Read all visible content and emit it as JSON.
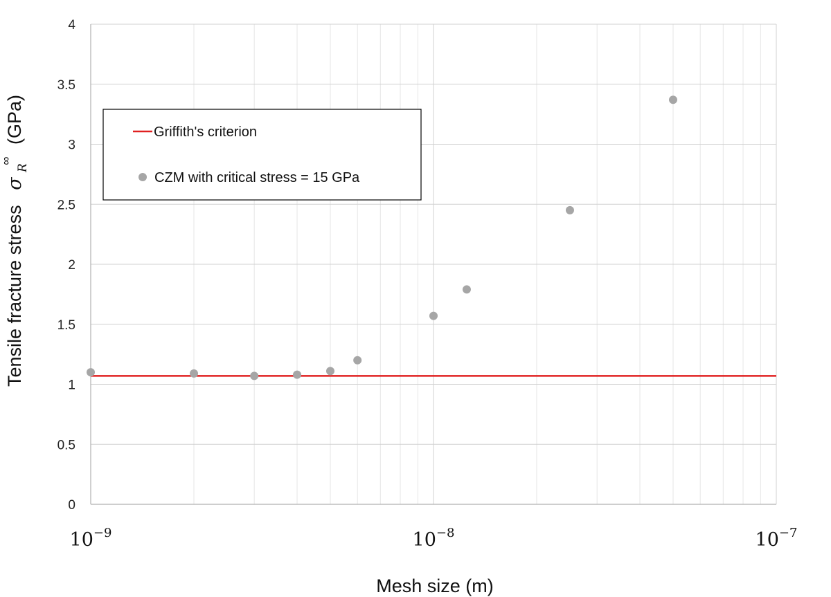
{
  "chart_data": {
    "type": "scatter",
    "x_scale": "log",
    "xlim": [
      1e-09,
      1e-07
    ],
    "ylim": [
      0,
      4
    ],
    "grid": true,
    "xlabel": "Mesh size (m)",
    "ylabel": {
      "prefix": "Tensile fracture stress",
      "symbol": "σ",
      "subscript": "R",
      "superscript": "∞",
      "unit": "(GPa)"
    },
    "x_ticks": [
      {
        "value": 1e-09,
        "base": "10",
        "exponent": "−9"
      },
      {
        "value": 1e-08,
        "base": "10",
        "exponent": "−8"
      },
      {
        "value": 1e-07,
        "base": "10",
        "exponent": "−7"
      }
    ],
    "y_ticks": [
      {
        "value": 0,
        "label": "0"
      },
      {
        "value": 0.5,
        "label": "0.5"
      },
      {
        "value": 1,
        "label": "1"
      },
      {
        "value": 1.5,
        "label": "1.5"
      },
      {
        "value": 2,
        "label": "2"
      },
      {
        "value": 2.5,
        "label": "2.5"
      },
      {
        "value": 3,
        "label": "3"
      },
      {
        "value": 3.5,
        "label": "3.5"
      },
      {
        "value": 4,
        "label": "4"
      }
    ],
    "legend": {
      "position": "upper-left",
      "entries": [
        {
          "label": "Griffith's criterion",
          "marker": "line",
          "color": "#e02020"
        },
        {
          "label": "CZM with critical stress = 15 GPa",
          "marker": "circle",
          "color": "#a6a6a6"
        }
      ]
    },
    "series": [
      {
        "name": "Griffith's criterion",
        "kind": "line",
        "color": "#e02020",
        "x": [
          1e-09,
          1e-07
        ],
        "y": [
          1.07,
          1.07
        ]
      },
      {
        "name": "CZM with critical stress = 15 GPa",
        "kind": "scatter",
        "color": "#a6a6a6",
        "x": [
          1e-09,
          2e-09,
          3e-09,
          4e-09,
          5e-09,
          6e-09,
          1e-08,
          1.25e-08,
          2.5e-08,
          5e-08
        ],
        "y": [
          1.1,
          1.09,
          1.07,
          1.08,
          1.11,
          1.2,
          1.57,
          1.79,
          2.45,
          3.37
        ]
      }
    ]
  }
}
